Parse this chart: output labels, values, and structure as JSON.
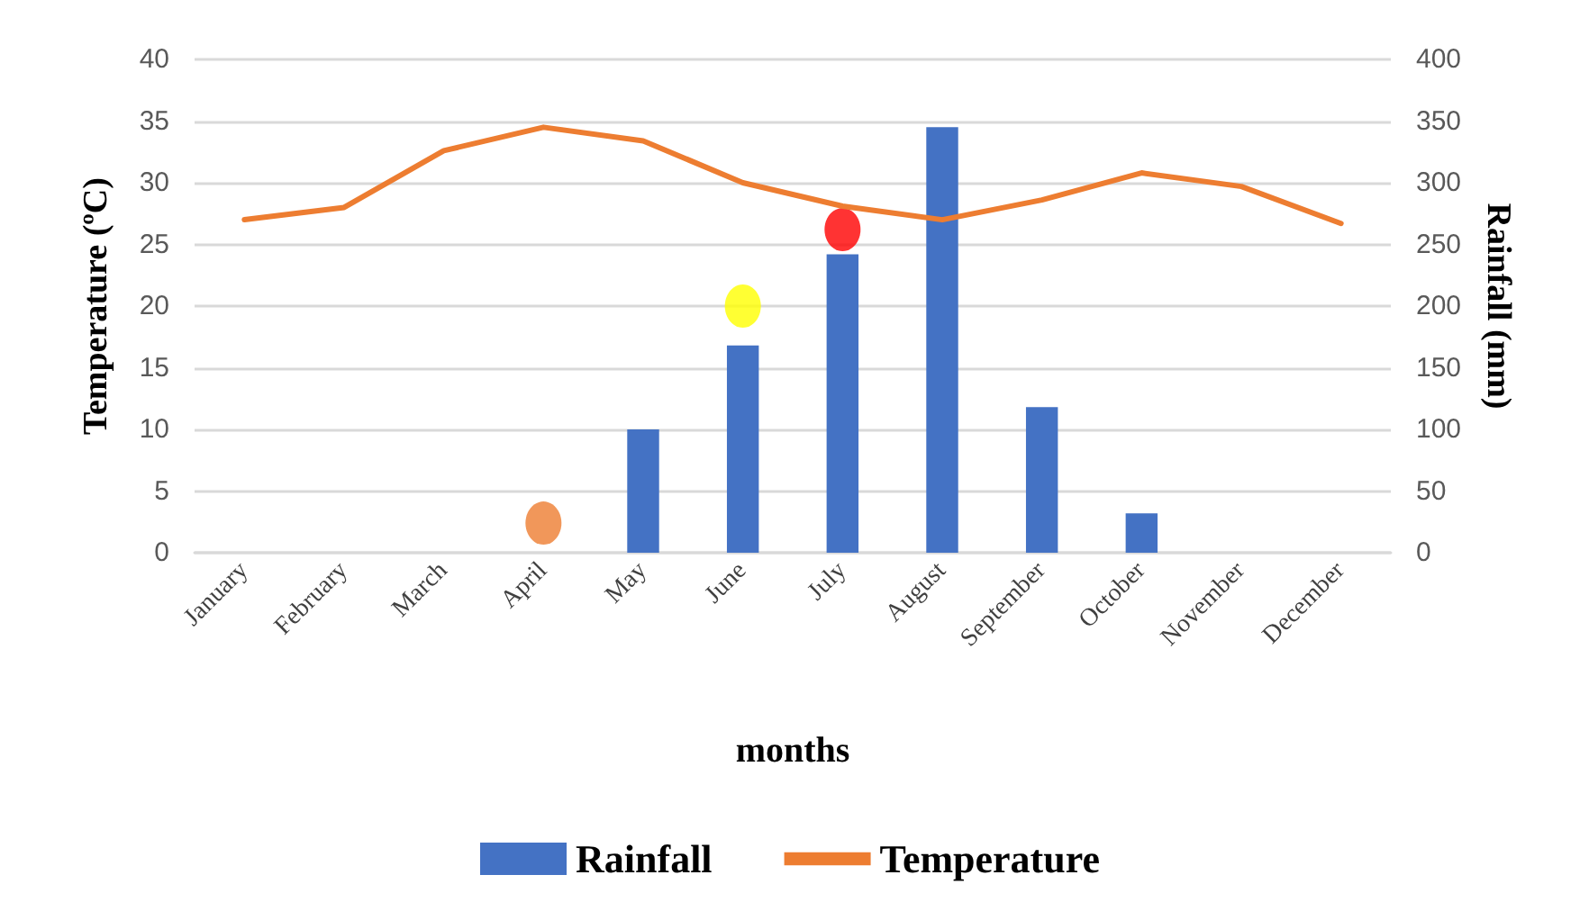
{
  "chart_data": {
    "type": "bar",
    "xlabel": "months",
    "ylabel": "Temperature (ºC)",
    "y2label": "Rainfall (mm)",
    "categories": [
      "January",
      "February",
      "March",
      "April",
      "May",
      "June",
      "July",
      "August",
      "September",
      "October",
      "November",
      "December"
    ],
    "series": [
      {
        "name": "Rainfall",
        "axis": "y2",
        "color": "#4472c4",
        "values": [
          0,
          0,
          0,
          0,
          100,
          168,
          242,
          345,
          118,
          32,
          0,
          0
        ]
      },
      {
        "name": "Temperature",
        "type": "line",
        "marker": "none",
        "color": "#ed7d31",
        "values": [
          27,
          28,
          32.6,
          34.5,
          33.4,
          30,
          28.1,
          27,
          28.6,
          30.8,
          29.7,
          26.7
        ]
      },
      {
        "type": "scatter",
        "marker": "circle",
        "x": [
          "April",
          "June",
          "July"
        ],
        "colors": [
          "#ed7d31",
          "#ffff00",
          "#ff0000"
        ],
        "values": [
          2.4,
          20,
          26.2
        ]
      }
    ],
    "ylim": [
      0,
      40
    ],
    "yticks": [
      0,
      5,
      10,
      15,
      20,
      25,
      30,
      35,
      40
    ],
    "y2lim": [
      0,
      400
    ],
    "y2ticks": [
      0,
      50,
      100,
      150,
      200,
      250,
      300,
      350,
      400
    ],
    "grid": "y",
    "legend": "bottom"
  }
}
